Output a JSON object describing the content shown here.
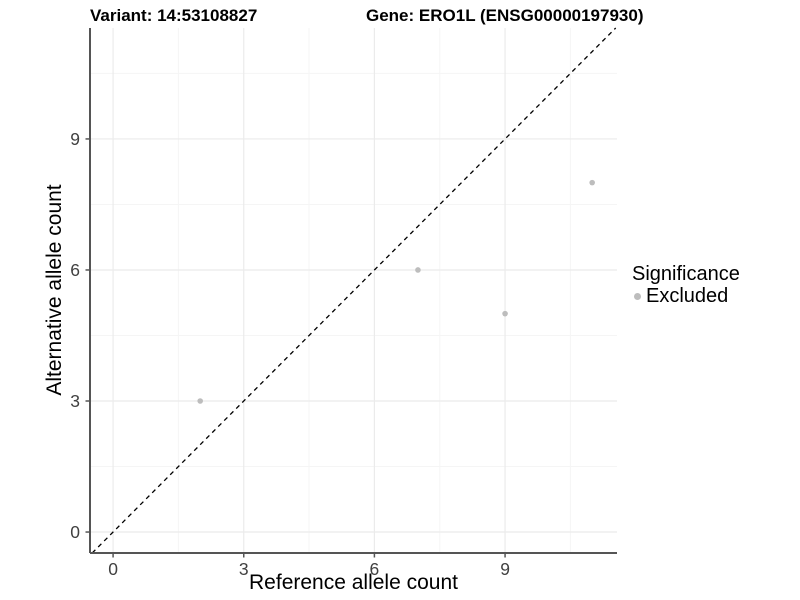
{
  "title": {
    "variant": "Variant: 14:53108827",
    "gene": "Gene: ERO1L (ENSG00000197930)"
  },
  "x_axis": {
    "label": "Reference allele count"
  },
  "y_axis": {
    "label": "Alternative allele count"
  },
  "legend": {
    "title": "Significance",
    "items": [
      {
        "label": "Excluded",
        "color": "#bdbdbd"
      }
    ]
  },
  "chart_data": {
    "type": "scatter",
    "title": "Variant: 14:53108827 / Gene: ERO1L (ENSG00000197930)",
    "xlabel": "Reference allele count",
    "ylabel": "Alternative allele count",
    "xlim": [
      -0.53,
      11.57
    ],
    "ylim": [
      -0.48,
      11.54
    ],
    "xticks": [
      0,
      3,
      6,
      9
    ],
    "yticks": [
      0,
      3,
      6,
      9
    ],
    "x_minor_ticks": [
      1.5,
      4.5,
      7.5,
      10.5
    ],
    "y_minor_ticks": [
      1.5,
      4.5,
      7.5,
      10.5
    ],
    "grid": "on",
    "legend_position": "right",
    "series": [
      {
        "name": "Excluded",
        "color": "#bdbdbd",
        "marker": "circle",
        "points": [
          {
            "x": 2,
            "y": 3
          },
          {
            "x": 7,
            "y": 6
          },
          {
            "x": 9,
            "y": 5
          },
          {
            "x": 11,
            "y": 8
          }
        ]
      }
    ],
    "reference_line": {
      "type": "identity_y_equals_x",
      "style": "dashed",
      "color": "#000000"
    },
    "style": {
      "background": "#ffffff",
      "axis_color": "#555555",
      "tick_color": "#555555",
      "grid_major_color": "#ebebeb",
      "grid_minor_color": "#f5f5f5",
      "point_radius": 2.8
    }
  }
}
